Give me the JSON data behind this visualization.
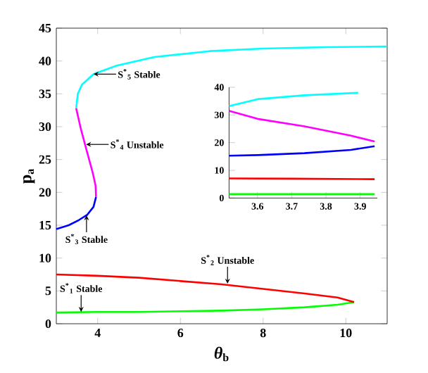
{
  "chart_data": [
    {
      "type": "line",
      "xlabel": "*θ*$_{b}$",
      "ylabel": "p$_{a}$",
      "xlim": [
        3,
        11
      ],
      "ylim": [
        0,
        45
      ],
      "xticks": [
        4,
        6,
        8,
        10
      ],
      "yticks": [
        0,
        5,
        10,
        15,
        20,
        25,
        30,
        35,
        40,
        45
      ],
      "grid": false,
      "marker": "none",
      "line_style": "solid",
      "series": [
        {
          "color": "#00ff00",
          "x": [
            3,
            4,
            5,
            6,
            7,
            8,
            9,
            9.8,
            10.2
          ],
          "values": [
            1.7,
            1.8,
            1.8,
            1.9,
            2.0,
            2.2,
            2.5,
            2.9,
            3.3
          ]
        },
        {
          "color": "#ff0000",
          "x": [
            10.2,
            9.8,
            9,
            8,
            7,
            6,
            5,
            4,
            3
          ],
          "values": [
            3.3,
            4.0,
            4.6,
            5.3,
            6.0,
            6.5,
            7.0,
            7.3,
            7.5
          ]
        },
        {
          "color": "#0000ff",
          "x": [
            3,
            3.3,
            3.55,
            3.75,
            3.9,
            3.96
          ],
          "values": [
            14.4,
            15,
            15.8,
            16.6,
            17.8,
            19.3
          ]
        },
        {
          "color": "#ff00ff",
          "x": [
            3.96,
            3.95,
            3.88,
            3.75,
            3.6,
            3.48
          ],
          "values": [
            19.3,
            21,
            23,
            26,
            29.5,
            32.8
          ]
        },
        {
          "color": "#00ffff",
          "x": [
            3.48,
            3.52,
            3.62,
            3.9,
            4.46,
            5.37,
            6.7,
            8,
            9.5,
            11
          ],
          "values": [
            32.8,
            35,
            36.4,
            38.0,
            39.3,
            40.6,
            41.5,
            41.9,
            42.1,
            42.2
          ]
        }
      ],
      "annotations": [
        {
          "text": "S$^{*}$$_{5}$ Stable",
          "x": 3.9,
          "y": 38.0
        },
        {
          "text": "S$^{*}$$_{4}$ Unstable",
          "x": 3.72,
          "y": 27.3
        },
        {
          "text": "S$^{*}$$_{3}$ Stable",
          "x": 3.73,
          "y": 16.5
        },
        {
          "text": "S$^{*}$$_{2}$ Unstable",
          "x": 7.14,
          "y": 6.1
        },
        {
          "text": "S$^{*}$$_{1}$ Stable",
          "x": 3.6,
          "y": 1.8
        }
      ]
    },
    {
      "type": "line",
      "xlim": [
        3.517,
        3.95
      ],
      "ylim": [
        0,
        40
      ],
      "xticks": [
        3.6,
        3.7,
        3.8,
        3.9
      ],
      "yticks": [
        0,
        10,
        20,
        30,
        40
      ],
      "grid": false,
      "marker": "none",
      "line_style": "solid",
      "series": [
        {
          "color": "#00ff00",
          "x": [
            3.517,
            3.7,
            3.942
          ],
          "values": [
            1.4,
            1.4,
            1.4
          ]
        },
        {
          "color": "#ff0000",
          "x": [
            3.517,
            3.7,
            3.942
          ],
          "values": [
            7.1,
            7.0,
            6.8
          ]
        },
        {
          "color": "#0000ff",
          "x": [
            3.517,
            3.6,
            3.737,
            3.873,
            3.942
          ],
          "values": [
            15.3,
            15.5,
            16.2,
            17.4,
            18.7
          ]
        },
        {
          "color": "#ff00ff",
          "x": [
            3.517,
            3.6,
            3.737,
            3.873,
            3.942
          ],
          "values": [
            31.5,
            28.6,
            25.9,
            22.5,
            20.4
          ]
        },
        {
          "color": "#00ffff",
          "x": [
            3.517,
            3.6,
            3.737,
            3.894
          ],
          "values": [
            33.2,
            35.7,
            37.1,
            38.0
          ]
        }
      ]
    }
  ]
}
